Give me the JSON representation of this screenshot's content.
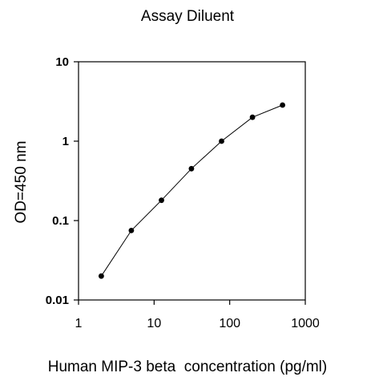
{
  "chart_data": {
    "type": "line",
    "title": "Assay Diluent",
    "xlabel": "Human MIP-3 beta  concentration (pg/ml)",
    "ylabel": "OD=450 nm",
    "xscale": "log",
    "yscale": "log",
    "xlim": [
      1,
      1000
    ],
    "ylim": [
      0.01,
      10
    ],
    "x_ticks": [
      "1",
      "10",
      "100",
      "1000"
    ],
    "y_ticks": [
      "0.01",
      "0.1",
      "1",
      "10"
    ],
    "grid": false,
    "legend": "none",
    "marker": "circle",
    "series": [
      {
        "x": [
          2,
          5,
          12.5,
          31.2,
          78,
          200,
          500
        ],
        "values": [
          0.02,
          0.075,
          0.18,
          0.45,
          1.0,
          2.0,
          2.85
        ]
      }
    ]
  }
}
